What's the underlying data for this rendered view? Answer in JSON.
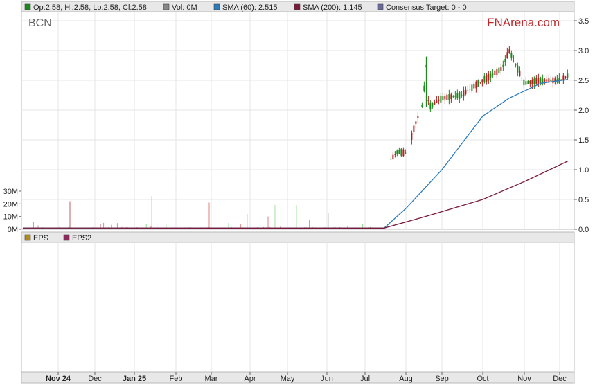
{
  "legend": [
    {
      "text": "Op:2.58, Hi:2.58, Lo:2.58, Cl:2.58",
      "color": "#1a8a1a"
    },
    {
      "text": "Vol: 0M",
      "color": "#888888"
    },
    {
      "text": "SMA (60): 2.515",
      "color": "#2b7bbd"
    },
    {
      "text": "SMA (200): 1.145",
      "color": "#7a1a3a"
    },
    {
      "text": "Consensus Target: 0 - 0",
      "color": "#6a6a9a"
    }
  ],
  "ticker": "BCN",
  "brand": "FNArena.com",
  "lower_legend": [
    {
      "text": "EPS",
      "color": "#b08a1a"
    },
    {
      "text": "EPS2",
      "color": "#8a2a5a"
    }
  ],
  "chart_data": {
    "type": "candlestick",
    "price_axis": {
      "ticks": [
        "3.5",
        "3.0",
        "2.5",
        "2.0",
        "1.5",
        "1.0",
        "0.5",
        "0.0"
      ],
      "values": [
        3.5,
        3.0,
        2.5,
        2.0,
        1.5,
        1.0,
        0.5,
        0.0
      ],
      "ylim": [
        0,
        3.5
      ]
    },
    "volume_axis": {
      "ticks": [
        "30M",
        "20M",
        "10M",
        "0M"
      ],
      "values": [
        30,
        20,
        10,
        0
      ],
      "ylim": [
        0,
        30
      ]
    },
    "x_ticks": [
      {
        "label": "Nov 24",
        "bold": true
      },
      {
        "label": "Dec",
        "bold": false
      },
      {
        "label": "Jan 25",
        "bold": true
      },
      {
        "label": "Feb",
        "bold": false
      },
      {
        "label": "Mar",
        "bold": false
      },
      {
        "label": "Apr",
        "bold": false
      },
      {
        "label": "May",
        "bold": false
      },
      {
        "label": "Jun",
        "bold": false
      },
      {
        "label": "Jul",
        "bold": false
      },
      {
        "label": "Aug",
        "bold": false
      },
      {
        "label": "Sep",
        "bold": false
      },
      {
        "label": "Oct",
        "bold": false
      },
      {
        "label": "Nov",
        "bold": false
      },
      {
        "label": "Dec",
        "bold": false
      }
    ],
    "price_series": [
      {
        "t": "Jul-20",
        "v": 1.18
      },
      {
        "t": "Jul-25",
        "v": 1.3
      },
      {
        "t": "Aug-01",
        "v": 1.28
      },
      {
        "t": "Aug-05",
        "v": 1.5
      },
      {
        "t": "Aug-08",
        "v": 1.72
      },
      {
        "t": "Aug-15",
        "v": 2.1
      },
      {
        "t": "Aug-18",
        "v": 2.75
      },
      {
        "t": "Aug-20",
        "v": 2.05
      },
      {
        "t": "Sep-01",
        "v": 2.2
      },
      {
        "t": "Sep-15",
        "v": 2.25
      },
      {
        "t": "Oct-01",
        "v": 2.5
      },
      {
        "t": "Oct-15",
        "v": 2.7
      },
      {
        "t": "Oct-20",
        "v": 3.0
      },
      {
        "t": "Nov-01",
        "v": 2.45
      },
      {
        "t": "Nov-15",
        "v": 2.5
      },
      {
        "t": "Dec-01",
        "v": 2.5
      },
      {
        "t": "Dec-08",
        "v": 2.58
      }
    ],
    "sma60": [
      {
        "t": "Jul-15",
        "v": 0.02
      },
      {
        "t": "Aug-01",
        "v": 0.35
      },
      {
        "t": "Sep-01",
        "v": 1.0
      },
      {
        "t": "Oct-01",
        "v": 1.9
      },
      {
        "t": "Oct-20",
        "v": 2.2
      },
      {
        "t": "Nov-15",
        "v": 2.45
      },
      {
        "t": "Dec-08",
        "v": 2.515
      }
    ],
    "sma200": [
      {
        "t": "Jul-15",
        "v": 0.02
      },
      {
        "t": "Aug-15",
        "v": 0.2
      },
      {
        "t": "Oct-01",
        "v": 0.5
      },
      {
        "t": "Nov-01",
        "v": 0.8
      },
      {
        "t": "Dec-08",
        "v": 1.145
      }
    ]
  }
}
